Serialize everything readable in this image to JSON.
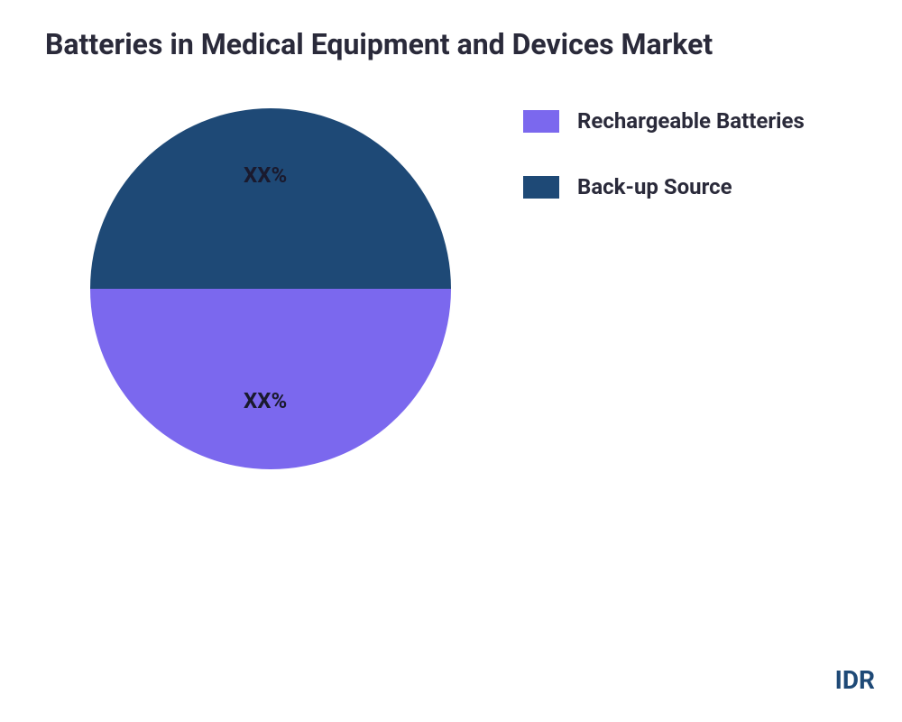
{
  "title": "Batteries in Medical Equipment and Devices  Market",
  "chart": {
    "type": "pie",
    "background_color": "#ffffff",
    "slices": [
      {
        "label": "Rechargeable Batteries",
        "value": 50,
        "display_label": "XX%",
        "color": "#7b68ee",
        "label_color": "#1a1a2e"
      },
      {
        "label": "Back-up Source",
        "value": 50,
        "display_label": "XX%",
        "color": "#1e4976",
        "label_color": "#1a1a2e"
      }
    ],
    "diameter": 400,
    "title_fontsize": 32,
    "legend_fontsize": 24,
    "slice_label_fontsize": 24
  },
  "legend": {
    "items": [
      {
        "label": "Rechargeable Batteries",
        "color": "#7b68ee"
      },
      {
        "label": "Back-up Source",
        "color": "#1e4976"
      }
    ]
  },
  "watermark": "IDR"
}
